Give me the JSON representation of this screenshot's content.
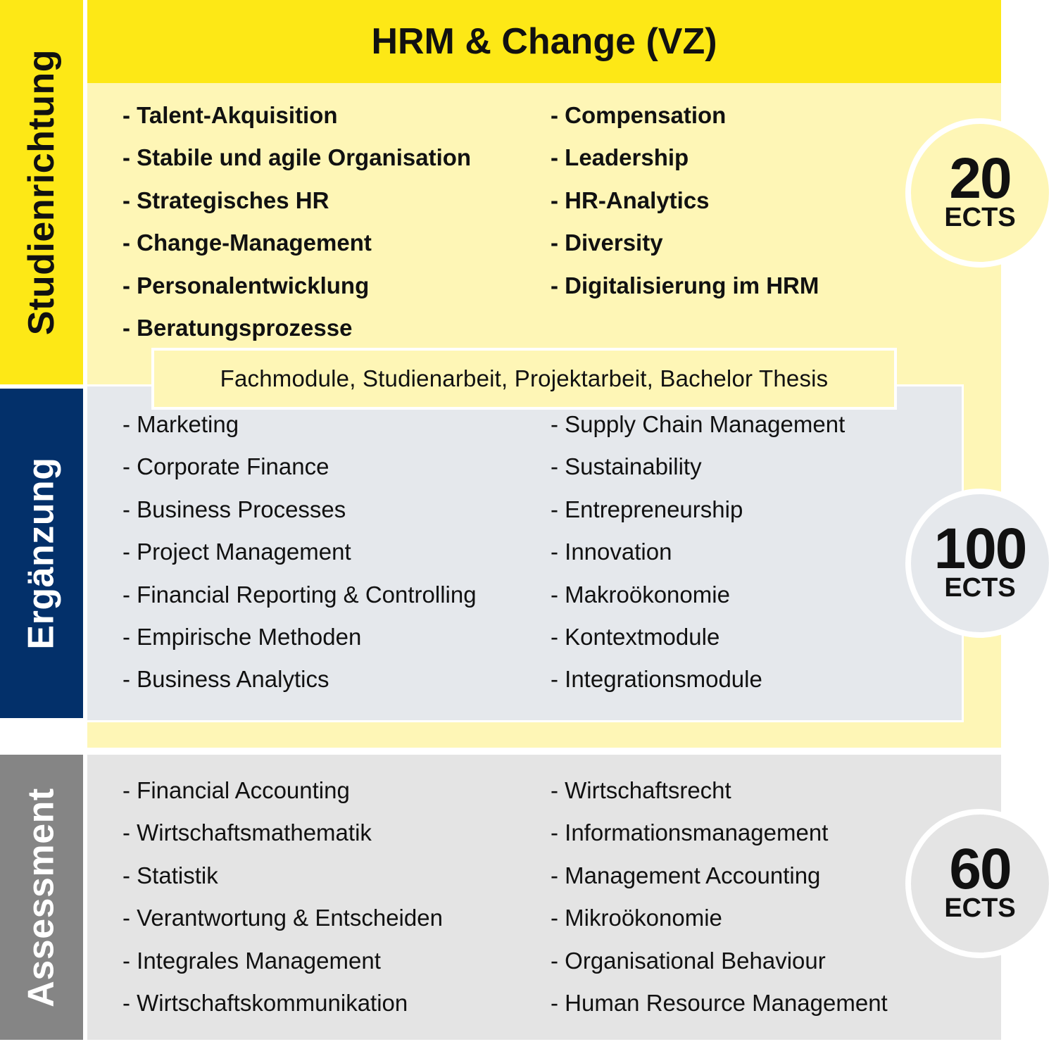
{
  "header": {
    "title": "HRM & Change (VZ)"
  },
  "sections": {
    "studienrichtung": {
      "label": "Studienrichtung",
      "left": [
        "- Talent-Akquisition",
        "- Stabile und agile Organisation",
        "- Strategisches HR",
        "- Change-Management",
        "- Personalentwicklung",
        "- Beratungsprozesse"
      ],
      "right": [
        "- Compensation",
        "- Leadership",
        "- HR-Analytics",
        "- Diversity",
        "- Digitalisierung im HRM"
      ],
      "ects": {
        "value": "20",
        "unit": "ECTS"
      }
    },
    "ergaenzung": {
      "label": "Ergänzung",
      "left": [
        "- Marketing",
        "- Corporate Finance",
        "- Business Processes",
        "- Project Management",
        "- Financial Reporting & Controlling",
        "- Empirische Methoden",
        "- Business Analytics"
      ],
      "right": [
        "- Supply Chain Management",
        "- Sustainability",
        "- Entrepreneurship",
        "- Innovation",
        "- Makroökonomie",
        "- Kontextmodule",
        "- Integrationsmodule"
      ],
      "ects": {
        "value": "100",
        "unit": "ECTS"
      }
    },
    "assessment": {
      "label": "Assessment",
      "left": [
        "- Financial Accounting",
        "- Wirtschaftsmathematik",
        "- Statistik",
        "- Verantwortung & Entscheiden",
        "- Integrales Management",
        "- Wirtschaftskommunikation"
      ],
      "right": [
        "- Wirtschaftsrecht",
        "- Informationsmanagement",
        "- Management Accounting",
        "- Mikroökonomie",
        "- Organisational Behaviour",
        "- Human Resource Management"
      ],
      "ects": {
        "value": "60",
        "unit": "ECTS"
      }
    }
  },
  "banner": {
    "text": "Fachmodule, Studienarbeit, Projektarbeit, Bachelor Thesis"
  },
  "colors": {
    "yellow": "#FDE816",
    "light_yellow": "#FEF6B6",
    "navy": "#03306A",
    "light_blue_gray": "#E5E8EC",
    "gray": "#858585",
    "light_gray": "#E4E4E4"
  }
}
